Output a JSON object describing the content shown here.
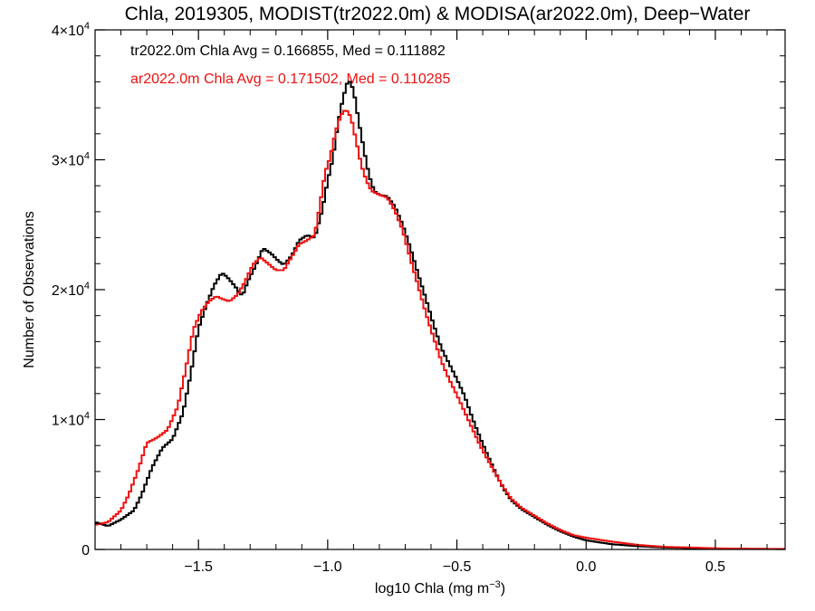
{
  "chart_data": {
    "type": "line",
    "title": "Chla, 2019305, MODIST(tr2022.0m) & MODISA(ar2022.0m), Deep−Water",
    "xlabel_main": "log10 Chla (mg m",
    "xlabel_sup": "−3",
    "xlabel_close": ")",
    "ylabel": "Number of Observations",
    "xlim": [
      -1.9,
      0.77
    ],
    "ylim": [
      0,
      40000
    ],
    "x_ticks": [
      {
        "value": -1.5,
        "label": "−1.5"
      },
      {
        "value": -1.0,
        "label": "−1.0"
      },
      {
        "value": -0.5,
        "label": "−0.5"
      },
      {
        "value": 0.0,
        "label": "0.0"
      },
      {
        "value": 0.5,
        "label": "0.5"
      }
    ],
    "y_ticks": [
      {
        "value": 0,
        "base": "0",
        "exp": ""
      },
      {
        "value": 10000,
        "base": "1×10",
        "exp": "4"
      },
      {
        "value": 20000,
        "base": "2×10",
        "exp": "4"
      },
      {
        "value": 30000,
        "base": "3×10",
        "exp": "4"
      },
      {
        "value": 40000,
        "base": "4×10",
        "exp": "4"
      }
    ],
    "annotations": [
      {
        "text": "tr2022.0m Chla Avg = 0.166855, Med = 0.111882",
        "color": "#000000"
      },
      {
        "text": "ar2022.0m Chla Avg = 0.171502, Med = 0.110285",
        "color": "#ee1111"
      }
    ],
    "series": [
      {
        "color": "#000000",
        "points": [
          [
            -1.9,
            2100
          ],
          [
            -1.85,
            1800
          ],
          [
            -1.8,
            2300
          ],
          [
            -1.75,
            3000
          ],
          [
            -1.72,
            4200
          ],
          [
            -1.68,
            6300
          ],
          [
            -1.64,
            7800
          ],
          [
            -1.6,
            8500
          ],
          [
            -1.56,
            10500
          ],
          [
            -1.53,
            13500
          ],
          [
            -1.5,
            17000
          ],
          [
            -1.47,
            18800
          ],
          [
            -1.44,
            20300
          ],
          [
            -1.41,
            21300
          ],
          [
            -1.39,
            21000
          ],
          [
            -1.36,
            20300
          ],
          [
            -1.33,
            19500
          ],
          [
            -1.31,
            20600
          ],
          [
            -1.28,
            21800
          ],
          [
            -1.25,
            23200
          ],
          [
            -1.22,
            22800
          ],
          [
            -1.19,
            22200
          ],
          [
            -1.17,
            21900
          ],
          [
            -1.14,
            22600
          ],
          [
            -1.11,
            23800
          ],
          [
            -1.08,
            24200
          ],
          [
            -1.05,
            24000
          ],
          [
            -1.02,
            26200
          ],
          [
            -1.0,
            28400
          ],
          [
            -0.98,
            30100
          ],
          [
            -0.96,
            32800
          ],
          [
            -0.94,
            34800
          ],
          [
            -0.92,
            36200
          ],
          [
            -0.9,
            35400
          ],
          [
            -0.88,
            33000
          ],
          [
            -0.86,
            30800
          ],
          [
            -0.84,
            28800
          ],
          [
            -0.82,
            27600
          ],
          [
            -0.8,
            27300
          ],
          [
            -0.77,
            27200
          ],
          [
            -0.74,
            26400
          ],
          [
            -0.71,
            25000
          ],
          [
            -0.68,
            23200
          ],
          [
            -0.65,
            21200
          ],
          [
            -0.62,
            19300
          ],
          [
            -0.59,
            17300
          ],
          [
            -0.56,
            15500
          ],
          [
            -0.53,
            14300
          ],
          [
            -0.5,
            13100
          ],
          [
            -0.47,
            11800
          ],
          [
            -0.44,
            10100
          ],
          [
            -0.41,
            8600
          ],
          [
            -0.38,
            7200
          ],
          [
            -0.35,
            5900
          ],
          [
            -0.32,
            4700
          ],
          [
            -0.29,
            3800
          ],
          [
            -0.25,
            3100
          ],
          [
            -0.2,
            2500
          ],
          [
            -0.15,
            1900
          ],
          [
            -0.1,
            1400
          ],
          [
            -0.05,
            1000
          ],
          [
            0.0,
            700
          ],
          [
            0.1,
            400
          ],
          [
            0.2,
            250
          ],
          [
            0.3,
            150
          ],
          [
            0.4,
            100
          ],
          [
            0.5,
            70
          ],
          [
            0.6,
            50
          ],
          [
            0.77,
            30
          ]
        ]
      },
      {
        "color": "#ee1111",
        "points": [
          [
            -1.9,
            1900
          ],
          [
            -1.85,
            2100
          ],
          [
            -1.8,
            3000
          ],
          [
            -1.77,
            4200
          ],
          [
            -1.73,
            6300
          ],
          [
            -1.7,
            8200
          ],
          [
            -1.66,
            8600
          ],
          [
            -1.62,
            9200
          ],
          [
            -1.58,
            11000
          ],
          [
            -1.55,
            13800
          ],
          [
            -1.52,
            16900
          ],
          [
            -1.49,
            18300
          ],
          [
            -1.46,
            19100
          ],
          [
            -1.43,
            19500
          ],
          [
            -1.41,
            19300
          ],
          [
            -1.38,
            19100
          ],
          [
            -1.35,
            19600
          ],
          [
            -1.32,
            20600
          ],
          [
            -1.29,
            21900
          ],
          [
            -1.26,
            22500
          ],
          [
            -1.23,
            22000
          ],
          [
            -1.2,
            21500
          ],
          [
            -1.17,
            21500
          ],
          [
            -1.14,
            22500
          ],
          [
            -1.11,
            23500
          ],
          [
            -1.08,
            23800
          ],
          [
            -1.05,
            24200
          ],
          [
            -1.03,
            26500
          ],
          [
            -1.01,
            29000
          ],
          [
            -0.99,
            30200
          ],
          [
            -0.97,
            32100
          ],
          [
            -0.95,
            33400
          ],
          [
            -0.93,
            33900
          ],
          [
            -0.91,
            33300
          ],
          [
            -0.89,
            31500
          ],
          [
            -0.87,
            29600
          ],
          [
            -0.85,
            28400
          ],
          [
            -0.83,
            27600
          ],
          [
            -0.8,
            27300
          ],
          [
            -0.77,
            27100
          ],
          [
            -0.74,
            26100
          ],
          [
            -0.71,
            24600
          ],
          [
            -0.68,
            22400
          ],
          [
            -0.65,
            20300
          ],
          [
            -0.62,
            18200
          ],
          [
            -0.59,
            16300
          ],
          [
            -0.56,
            14500
          ],
          [
            -0.53,
            13100
          ],
          [
            -0.5,
            11900
          ],
          [
            -0.47,
            10600
          ],
          [
            -0.44,
            9300
          ],
          [
            -0.41,
            8000
          ],
          [
            -0.38,
            6900
          ],
          [
            -0.35,
            5800
          ],
          [
            -0.32,
            4800
          ],
          [
            -0.29,
            3900
          ],
          [
            -0.25,
            3200
          ],
          [
            -0.2,
            2600
          ],
          [
            -0.15,
            2000
          ],
          [
            -0.1,
            1500
          ],
          [
            -0.05,
            1100
          ],
          [
            0.0,
            900
          ],
          [
            0.1,
            600
          ],
          [
            0.2,
            350
          ],
          [
            0.3,
            200
          ],
          [
            0.4,
            150
          ],
          [
            0.5,
            90
          ],
          [
            0.6,
            60
          ],
          [
            0.77,
            40
          ]
        ]
      }
    ]
  }
}
